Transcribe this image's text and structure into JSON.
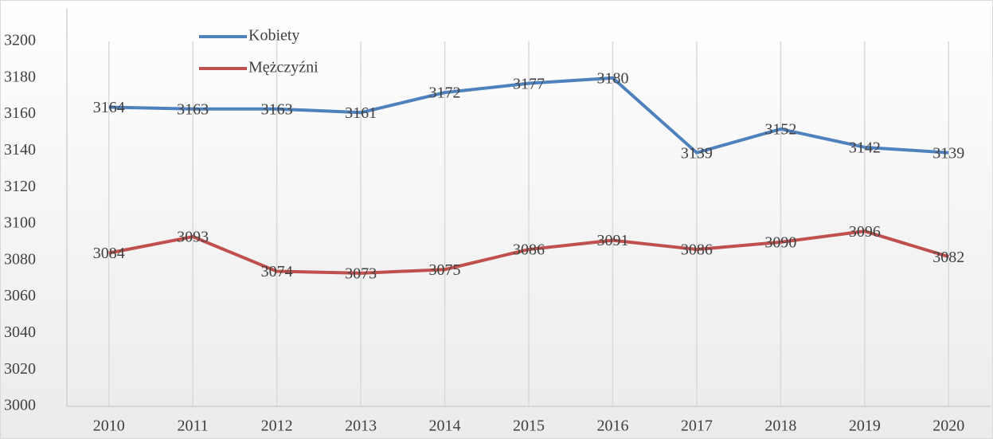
{
  "chart_data": {
    "type": "line",
    "categories": [
      "2010",
      "2011",
      "2012",
      "2013",
      "2014",
      "2015",
      "2016",
      "2017",
      "2018",
      "2019",
      "2020"
    ],
    "series": [
      {
        "name": "Kobiety",
        "color": "#4f81bd",
        "values": [
          3164,
          3163,
          3163,
          3161,
          3172,
          3177,
          3180,
          3139,
          3152,
          3142,
          3139
        ]
      },
      {
        "name": "Mężczyźni",
        "color": "#c0504d",
        "values": [
          3084,
          3093,
          3074,
          3073,
          3075,
          3086,
          3091,
          3086,
          3090,
          3096,
          3082
        ]
      }
    ],
    "ylim": [
      3000,
      3200
    ],
    "yticks": [
      3000,
      3020,
      3040,
      3060,
      3080,
      3100,
      3120,
      3140,
      3160,
      3180,
      3200
    ],
    "grid": "x",
    "legend": "top-left",
    "data_labels": true
  }
}
